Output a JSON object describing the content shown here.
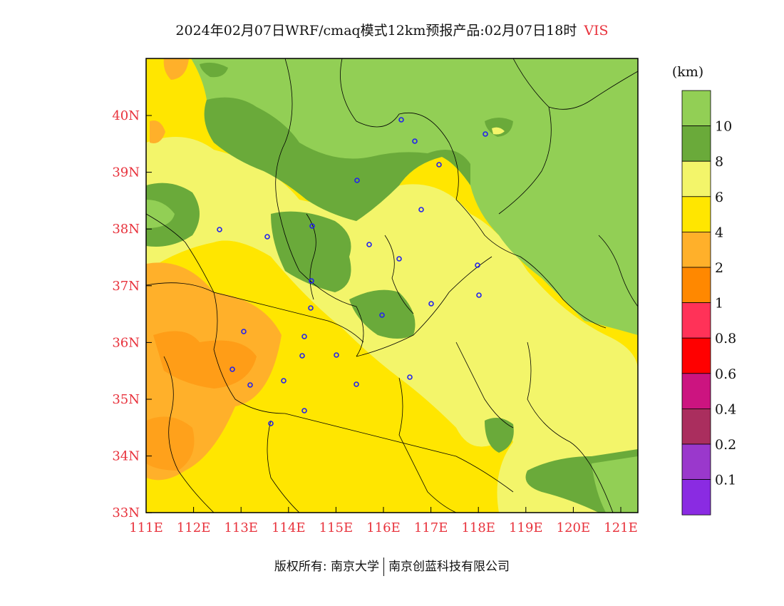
{
  "title": {
    "main": "2024年02月07日WRF/cmaq模式12km预报产品:02月07日18时",
    "variable": "VIS"
  },
  "lon_labels": [
    "111E",
    "112E",
    "113E",
    "114E",
    "115E",
    "116E",
    "117E",
    "118E",
    "119E",
    "120E",
    "121E"
  ],
  "lat_labels": [
    "40N",
    "39N",
    "38N",
    "37N",
    "36N",
    "35N",
    "34N",
    "33N"
  ],
  "colorbar": {
    "unit": "(km)",
    "levels": [
      "10",
      "8",
      "6",
      "4",
      "2",
      "1",
      "0.8",
      "0.6",
      "0.4",
      "0.2",
      "0.1"
    ],
    "colors": [
      "#92cf55",
      "#6aaa3a",
      "#f3f56a",
      "#ffe600",
      "#ffb02a",
      "#ff8800",
      "#ff3258",
      "#ff0000",
      "#cc1480",
      "#aa2e5e",
      "#9a38cc",
      "#8a2be2"
    ]
  },
  "cities_icon": "city-marker-icon",
  "footer": {
    "copyright": "版权所有: 南京大学",
    "company": "南京创蓝科技有限公司"
  }
}
